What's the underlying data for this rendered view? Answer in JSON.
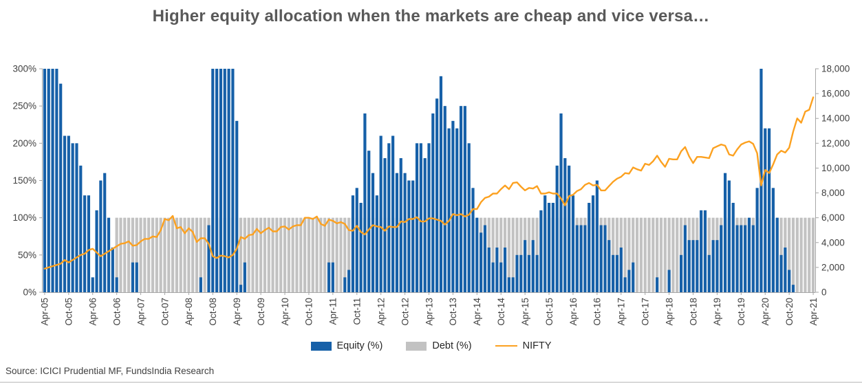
{
  "title": "Higher equity allocation when the markets are cheap and vice versa…",
  "source": "Source: ICICI Prudential MF, FundsIndia Research",
  "legend": {
    "equity": "Equity (%)",
    "debt": "Debt (%)",
    "nifty": "NIFTY"
  },
  "colors": {
    "equity": "#1660A8",
    "debt": "#C2C2C2",
    "nifty": "#FCA120",
    "axis": "#A6A6A6",
    "tick_text": "#404040",
    "title_text": "#595959"
  },
  "chart_data": {
    "type": "bar",
    "subtype": "monthly bars (left %) with line overlay (right index)",
    "x_start": "Apr-05",
    "x_freq_months": 1,
    "x_points": 193,
    "x_tick_every": 6,
    "x_tick_labels": [
      "Apr-05",
      "Oct-05",
      "Apr-06",
      "Oct-06",
      "Apr-07",
      "Oct-07",
      "Apr-08",
      "Oct-08",
      "Apr-09",
      "Oct-09",
      "Apr-10",
      "Oct-10",
      "Apr-11",
      "Oct-11",
      "Apr-12",
      "Oct-12",
      "Apr-13",
      "Oct-13",
      "Apr-14",
      "Oct-14",
      "Apr-15",
      "Oct-15",
      "Apr-16",
      "Oct-16",
      "Apr-17",
      "Oct-17",
      "Apr-18",
      "Oct-18",
      "Apr-19",
      "Oct-19",
      "Apr-20",
      "Oct-20",
      "Apr-21"
    ],
    "y_left": {
      "min": 0,
      "max": 300,
      "step": 50,
      "tick_labels": [
        "0%",
        "50%",
        "100%",
        "150%",
        "200%",
        "250%",
        "300%"
      ]
    },
    "y_right": {
      "min": 0,
      "max": 18000,
      "step": 2000,
      "tick_labels": [
        "0",
        "2,000",
        "4,000",
        "6,000",
        "8,000",
        "10,000",
        "12,000",
        "14,000",
        "16,000",
        "18,000"
      ]
    },
    "grid": "off",
    "legend_position": "bottom-center",
    "series": [
      {
        "name": "Equity (%)",
        "type": "bar",
        "axis": "left",
        "values": [
          300,
          300,
          300,
          300,
          280,
          210,
          210,
          200,
          200,
          170,
          130,
          130,
          20,
          110,
          150,
          160,
          100,
          60,
          20,
          0,
          0,
          0,
          40,
          40,
          0,
          0,
          0,
          0,
          0,
          0,
          0,
          0,
          0,
          0,
          0,
          0,
          0,
          0,
          0,
          20,
          0,
          90,
          300,
          300,
          300,
          300,
          300,
          300,
          230,
          10,
          40,
          0,
          0,
          0,
          0,
          0,
          0,
          0,
          0,
          0,
          0,
          0,
          0,
          0,
          0,
          0,
          0,
          0,
          0,
          0,
          0,
          40,
          40,
          0,
          0,
          20,
          30,
          130,
          140,
          120,
          240,
          190,
          160,
          130,
          210,
          180,
          200,
          210,
          160,
          180,
          160,
          150,
          150,
          200,
          200,
          180,
          200,
          240,
          260,
          290,
          250,
          220,
          230,
          220,
          250,
          250,
          200,
          140,
          100,
          80,
          90,
          60,
          40,
          60,
          40,
          60,
          20,
          20,
          50,
          50,
          70,
          50,
          70,
          50,
          110,
          130,
          120,
          120,
          170,
          240,
          180,
          170,
          130,
          90,
          90,
          90,
          120,
          130,
          150,
          90,
          90,
          70,
          50,
          50,
          60,
          20,
          30,
          40,
          0,
          0,
          0,
          0,
          0,
          20,
          0,
          0,
          30,
          0,
          0,
          50,
          90,
          70,
          70,
          70,
          110,
          110,
          50,
          70,
          70,
          90,
          160,
          150,
          120,
          90,
          90,
          90,
          100,
          90,
          140,
          300,
          220,
          220,
          140,
          100,
          50,
          60,
          30,
          10,
          0,
          0,
          0,
          0,
          0
        ]
      },
      {
        "name": "Debt (%)",
        "type": "bar",
        "axis": "left",
        "constant_value": 100,
        "from_index": 18,
        "note": "flat 100% bars drawn behind equity bars from Oct-06 onward"
      },
      {
        "name": "NIFTY",
        "type": "line",
        "axis": "right",
        "values": [
          1900,
          2000,
          2100,
          2200,
          2300,
          2600,
          2400,
          2600,
          2800,
          3000,
          3100,
          3400,
          3500,
          3200,
          2900,
          3100,
          3300,
          3500,
          3700,
          3900,
          3950,
          4100,
          3750,
          3800,
          4100,
          4300,
          4300,
          4500,
          4450,
          5000,
          5900,
          5800,
          6150,
          5150,
          5250,
          4750,
          5150,
          4850,
          4050,
          4350,
          4350,
          3900,
          2900,
          2750,
          2950,
          2900,
          2800,
          3000,
          3500,
          4450,
          4300,
          4600,
          4650,
          5100,
          4750,
          5000,
          5200,
          4900,
          4900,
          5250,
          5300,
          5050,
          5300,
          5400,
          5400,
          6000,
          6000,
          5900,
          6100,
          5500,
          5350,
          5850,
          5750,
          5550,
          5650,
          5500,
          5000,
          4950,
          5350,
          4850,
          4650,
          5050,
          5400,
          5300,
          5250,
          4950,
          5300,
          5250,
          5250,
          5700,
          5650,
          5900,
          5900,
          6050,
          5700,
          5700,
          5950,
          5950,
          5850,
          5750,
          5450,
          5750,
          6300,
          6200,
          6300,
          6100,
          6250,
          6700,
          6700,
          7250,
          7600,
          7700,
          7950,
          7950,
          8300,
          8600,
          8300,
          8800,
          8850,
          8500,
          8200,
          8400,
          8350,
          8550,
          7950,
          7950,
          8050,
          7950,
          7950,
          7550,
          7000,
          7750,
          7850,
          8150,
          8300,
          8650,
          8800,
          8600,
          8650,
          8200,
          8200,
          8550,
          8900,
          9150,
          9300,
          9600,
          9550,
          10050,
          9900,
          9800,
          10350,
          10250,
          10550,
          11000,
          10500,
          10100,
          10750,
          10700,
          10700,
          11350,
          11700,
          10950,
          10400,
          10900,
          10900,
          10850,
          10800,
          11600,
          11750,
          11900,
          11800,
          11100,
          11000,
          11500,
          11900,
          12050,
          12150,
          11950,
          11200,
          8600,
          9850,
          9600,
          10300,
          11100,
          11400,
          11250,
          11650,
          12950,
          14000,
          13650,
          14550,
          14700,
          15700
        ]
      }
    ]
  }
}
